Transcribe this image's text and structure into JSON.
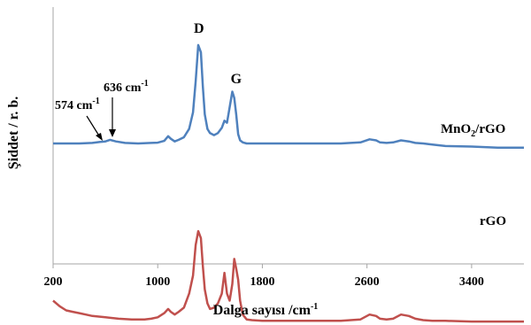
{
  "chart_data": {
    "type": "line",
    "title": "",
    "xlabel": "Dalga sayısı /cm",
    "xlabel_sup": "-1",
    "ylabel": "Şiddet / r. b.",
    "xlim": [
      200,
      3800
    ],
    "xticks": [
      {
        "value": 200,
        "label": "200"
      },
      {
        "value": 1000,
        "label": "1000"
      },
      {
        "value": 1800,
        "label": "1800"
      },
      {
        "value": 2600,
        "label": "2600"
      },
      {
        "value": 3400,
        "label": "3400"
      }
    ],
    "ylim": [
      0,
      1
    ],
    "yticks_shown": false,
    "grid": false,
    "series": [
      {
        "name": "MnO2/rGO",
        "label_main": "MnO",
        "label_sub": "2",
        "label_rest": "/rGO",
        "color": "#4f81bd",
        "x": [
          200,
          300,
          400,
          500,
          560,
          600,
          636,
          680,
          750,
          850,
          950,
          1000,
          1050,
          1080,
          1100,
          1130,
          1160,
          1200,
          1240,
          1270,
          1290,
          1310,
          1330,
          1345,
          1360,
          1380,
          1400,
          1430,
          1460,
          1490,
          1510,
          1530,
          1550,
          1570,
          1585,
          1600,
          1615,
          1630,
          1650,
          1680,
          1720,
          1800,
          2000,
          2200,
          2400,
          2550,
          2620,
          2670,
          2700,
          2750,
          2800,
          2860,
          2920,
          2970,
          3030,
          3100,
          3200,
          3400,
          3600,
          3800
        ],
        "y": [
          0.0,
          0.0,
          0.0,
          0.005,
          0.015,
          0.02,
          0.035,
          0.02,
          0.005,
          0.0,
          0.005,
          0.008,
          0.025,
          0.07,
          0.045,
          0.02,
          0.035,
          0.06,
          0.14,
          0.3,
          0.6,
          0.95,
          0.88,
          0.55,
          0.28,
          0.14,
          0.1,
          0.08,
          0.1,
          0.15,
          0.22,
          0.2,
          0.35,
          0.5,
          0.44,
          0.28,
          0.09,
          0.03,
          0.01,
          0.0,
          0.0,
          0.0,
          0.0,
          0.0,
          0.0,
          0.01,
          0.04,
          0.03,
          0.01,
          0.005,
          0.01,
          0.03,
          0.02,
          0.005,
          0.0,
          -0.01,
          -0.025,
          -0.03,
          -0.04,
          -0.04
        ]
      },
      {
        "name": "rGO",
        "label_main": "rGO",
        "label_sub": "",
        "label_rest": "",
        "color": "#c0504d",
        "x": [
          200,
          250,
          300,
          350,
          400,
          450,
          500,
          600,
          700,
          800,
          900,
          950,
          1000,
          1050,
          1080,
          1100,
          1130,
          1160,
          1200,
          1240,
          1270,
          1290,
          1310,
          1330,
          1345,
          1360,
          1380,
          1400,
          1430,
          1460,
          1490,
          1510,
          1530,
          1550,
          1570,
          1585,
          1600,
          1615,
          1630,
          1650,
          1680,
          1720,
          1800,
          2000,
          2200,
          2400,
          2550,
          2620,
          2670,
          2700,
          2750,
          2800,
          2860,
          2920,
          2970,
          3030,
          3100,
          3200,
          3400,
          3600,
          3800
        ],
        "y": [
          -0.5,
          -0.54,
          -0.57,
          -0.58,
          -0.59,
          -0.6,
          -0.61,
          -0.62,
          -0.63,
          -0.635,
          -0.635,
          -0.63,
          -0.62,
          -0.59,
          -0.56,
          -0.58,
          -0.6,
          -0.58,
          -0.55,
          -0.45,
          -0.32,
          -0.1,
          0.0,
          -0.05,
          -0.25,
          -0.42,
          -0.52,
          -0.56,
          -0.55,
          -0.52,
          -0.45,
          -0.3,
          -0.45,
          -0.5,
          -0.38,
          -0.2,
          -0.27,
          -0.35,
          -0.5,
          -0.6,
          -0.635,
          -0.64,
          -0.645,
          -0.645,
          -0.645,
          -0.645,
          -0.635,
          -0.6,
          -0.61,
          -0.63,
          -0.635,
          -0.63,
          -0.6,
          -0.61,
          -0.63,
          -0.64,
          -0.645,
          -0.645,
          -0.65,
          -0.65,
          -0.65
        ]
      }
    ],
    "annotations": {
      "d_peak": "D",
      "g_peak": "G",
      "ann_574_value": "574 cm",
      "ann_574_sup": "-1",
      "ann_636_value": "636 cm",
      "ann_636_sup": "-1"
    }
  }
}
